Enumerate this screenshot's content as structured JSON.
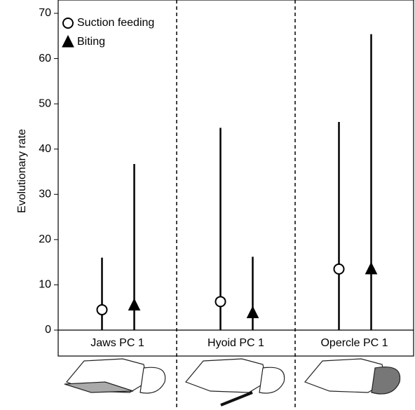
{
  "chart_data": {
    "type": "errorbar",
    "ylabel": "Evolutionary rate",
    "categories": [
      "Jaws PC 1",
      "Hyoid PC 1",
      "Opercle PC 1"
    ],
    "series": [
      {
        "name": "Suction feeding",
        "marker": "circle",
        "color": "#ffffff",
        "values": [
          4.5,
          6.3,
          13.5
        ],
        "lower": [
          0,
          0,
          0
        ],
        "upper": [
          16,
          44.7,
          46
        ]
      },
      {
        "name": "Biting",
        "marker": "triangle",
        "color": "#000000",
        "values": [
          5.5,
          3.8,
          13.5
        ],
        "lower": [
          0,
          0,
          0
        ],
        "upper": [
          36.7,
          16.2,
          65.4
        ]
      }
    ],
    "ylim": [
      0,
      70
    ],
    "yticks": [
      0,
      10,
      20,
      30,
      40,
      50,
      60,
      70
    ],
    "legend": "upper-left"
  }
}
